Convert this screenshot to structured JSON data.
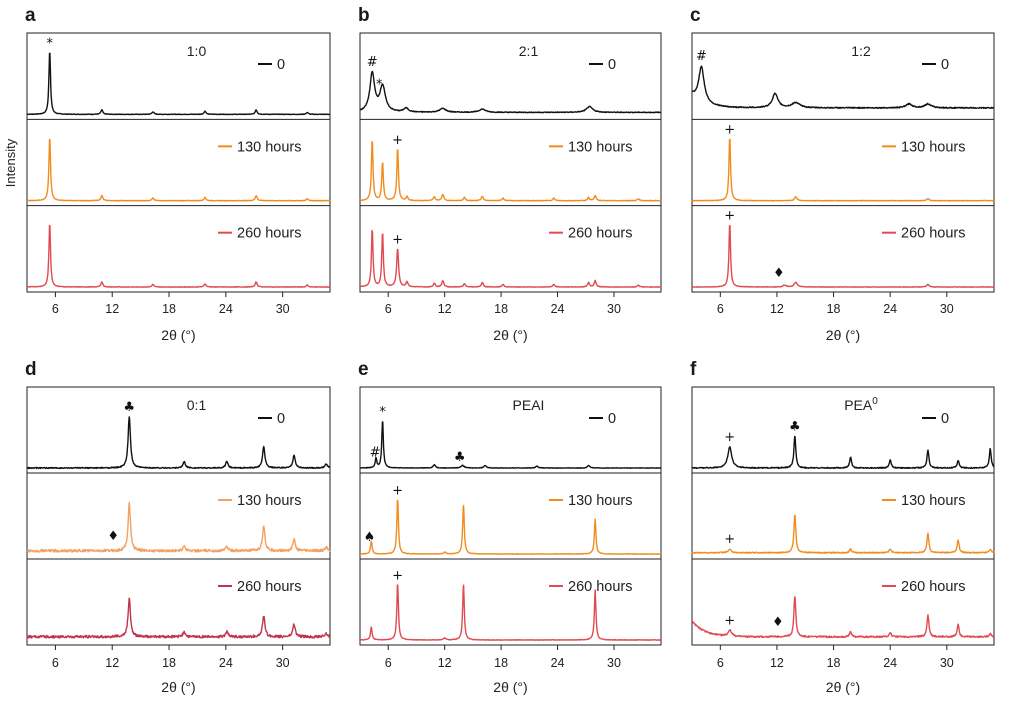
{
  "figure": {
    "ylabel": "Intensity",
    "xlabel": "2θ (°)",
    "xticks": [
      6,
      12,
      18,
      24,
      30
    ],
    "xlim": [
      3,
      35
    ],
    "colors": {
      "0": "#111111",
      "130": "#f28c1e",
      "260": "#e04a50"
    }
  },
  "chart_data": [
    {
      "panel": "a",
      "type": "line",
      "title": "1:0",
      "xlabel": "2θ (°)",
      "ylabel": "Intensity",
      "xlim": [
        3,
        35
      ],
      "xticks": [
        6,
        12,
        18,
        24,
        30
      ],
      "series": [
        {
          "name": "0",
          "legend": "0",
          "color": "#111111",
          "peaks": [
            [
              5.4,
              1.0,
              0.1
            ],
            [
              10.9,
              0.07,
              0.12
            ],
            [
              16.3,
              0.04,
              0.12
            ],
            [
              21.8,
              0.05,
              0.12
            ],
            [
              27.2,
              0.07,
              0.12
            ],
            [
              32.6,
              0.03,
              0.12
            ]
          ],
          "baseline": 0,
          "noise": 0.004,
          "markers": [
            {
              "symbol": "*",
              "x": 5.4
            }
          ]
        },
        {
          "name": "130 hours",
          "legend": "130 hours",
          "color": "#f28c1e",
          "peaks": [
            [
              5.4,
              1.0,
              0.1
            ],
            [
              10.9,
              0.08,
              0.12
            ],
            [
              16.3,
              0.04,
              0.12
            ],
            [
              21.8,
              0.05,
              0.12
            ],
            [
              27.2,
              0.08,
              0.12
            ],
            [
              32.6,
              0.03,
              0.12
            ]
          ],
          "baseline": 0,
          "noise": 0.004,
          "markers": []
        },
        {
          "name": "260 hours",
          "legend": "260 hours",
          "color": "#e04a50",
          "peaks": [
            [
              5.4,
              1.0,
              0.1
            ],
            [
              10.9,
              0.08,
              0.12
            ],
            [
              16.3,
              0.04,
              0.12
            ],
            [
              21.8,
              0.05,
              0.12
            ],
            [
              27.2,
              0.08,
              0.12
            ],
            [
              32.6,
              0.03,
              0.12
            ]
          ],
          "baseline": 0,
          "noise": 0.004,
          "markers": []
        }
      ]
    },
    {
      "panel": "b",
      "type": "line",
      "title": "2:1",
      "xlabel": "2θ (°)",
      "ylabel": "Intensity",
      "xlim": [
        3,
        35
      ],
      "xticks": [
        6,
        12,
        18,
        24,
        30
      ],
      "series": [
        {
          "name": "0",
          "legend": "0",
          "color": "#111111",
          "peaks": [
            [
              4.3,
              0.6,
              0.3
            ],
            [
              5.4,
              0.4,
              0.35
            ],
            [
              7.9,
              0.06,
              0.3
            ],
            [
              11.8,
              0.06,
              0.4
            ],
            [
              16.0,
              0.05,
              0.4
            ],
            [
              27.4,
              0.09,
              0.4
            ]
          ],
          "baseline": 0.03,
          "noise": 0.006,
          "markers": [
            {
              "symbol": "#",
              "x": 4.3
            },
            {
              "symbol": "*",
              "x": 5.05
            }
          ]
        },
        {
          "name": "130 hours",
          "legend": "130 hours",
          "color": "#f28c1e",
          "peaks": [
            [
              4.3,
              0.95,
              0.1
            ],
            [
              5.4,
              0.6,
              0.1
            ],
            [
              7.0,
              0.82,
              0.1
            ],
            [
              8.0,
              0.06,
              0.12
            ],
            [
              10.9,
              0.06,
              0.12
            ],
            [
              11.8,
              0.1,
              0.12
            ],
            [
              14.1,
              0.05,
              0.12
            ],
            [
              16.0,
              0.07,
              0.12
            ],
            [
              18.2,
              0.04,
              0.12
            ],
            [
              23.6,
              0.04,
              0.12
            ],
            [
              27.3,
              0.05,
              0.12
            ],
            [
              28.0,
              0.08,
              0.12
            ],
            [
              32.6,
              0.03,
              0.12
            ]
          ],
          "baseline": 0,
          "noise": 0.004,
          "markers": [
            {
              "symbol": "+",
              "x": 7.0
            }
          ]
        },
        {
          "name": "260 hours",
          "legend": "260 hours",
          "color": "#e04a50",
          "peaks": [
            [
              4.3,
              0.9,
              0.1
            ],
            [
              5.4,
              0.85,
              0.1
            ],
            [
              7.0,
              0.6,
              0.12
            ],
            [
              8.0,
              0.08,
              0.12
            ],
            [
              10.9,
              0.06,
              0.12
            ],
            [
              11.8,
              0.1,
              0.12
            ],
            [
              14.1,
              0.05,
              0.12
            ],
            [
              16.0,
              0.07,
              0.12
            ],
            [
              18.2,
              0.04,
              0.12
            ],
            [
              23.6,
              0.04,
              0.12
            ],
            [
              27.3,
              0.07,
              0.12
            ],
            [
              28.0,
              0.1,
              0.12
            ],
            [
              32.6,
              0.03,
              0.12
            ]
          ],
          "baseline": 0,
          "noise": 0.004,
          "markers": [
            {
              "symbol": "+",
              "x": 7.0
            }
          ]
        }
      ]
    },
    {
      "panel": "c",
      "type": "line",
      "title": "1:2",
      "xlabel": "2θ (°)",
      "ylabel": "Intensity",
      "xlim": [
        3,
        35
      ],
      "xticks": [
        6,
        12,
        18,
        24,
        30
      ],
      "series": [
        {
          "name": "0",
          "legend": "0",
          "color": "#111111",
          "peaks": [
            [
              4.0,
              0.55,
              0.35
            ],
            [
              11.8,
              0.22,
              0.35
            ],
            [
              14.0,
              0.08,
              0.5
            ],
            [
              26.0,
              0.06,
              0.4
            ],
            [
              28.0,
              0.06,
              0.4
            ]
          ],
          "baseline": 0.1,
          "decay": 0.2,
          "noise": 0.008,
          "markers": [
            {
              "symbol": "#",
              "x": 4.0
            }
          ]
        },
        {
          "name": "130 hours",
          "legend": "130 hours",
          "color": "#f28c1e",
          "peaks": [
            [
              7.0,
              1.0,
              0.1
            ],
            [
              14.0,
              0.06,
              0.15
            ],
            [
              28.0,
              0.03,
              0.15
            ]
          ],
          "baseline": 0,
          "noise": 0.004,
          "markers": [
            {
              "symbol": "+",
              "x": 7.0
            }
          ]
        },
        {
          "name": "260 hours",
          "legend": "260 hours",
          "color": "#e04a50",
          "peaks": [
            [
              7.0,
              1.0,
              0.1
            ],
            [
              12.8,
              0.03,
              0.2
            ],
            [
              14.0,
              0.07,
              0.2
            ],
            [
              28.0,
              0.04,
              0.15
            ]
          ],
          "baseline": 0,
          "noise": 0.004,
          "markers": [
            {
              "symbol": "+",
              "x": 7.0
            },
            {
              "symbol": "♦",
              "x": 12.2
            }
          ]
        }
      ]
    },
    {
      "panel": "d",
      "type": "line",
      "title": "0:1",
      "xlabel": "2θ (°)",
      "ylabel": "Intensity",
      "xlim": [
        3,
        35
      ],
      "xticks": [
        6,
        12,
        18,
        24,
        30
      ],
      "series": [
        {
          "name": "0",
          "legend": "0",
          "color": "#111111",
          "peaks": [
            [
              13.8,
              0.8,
              0.15
            ],
            [
              19.6,
              0.1,
              0.15
            ],
            [
              24.1,
              0.1,
              0.15
            ],
            [
              28.0,
              0.33,
              0.15
            ],
            [
              31.2,
              0.2,
              0.15
            ],
            [
              34.6,
              0.06,
              0.15
            ]
          ],
          "baseline": 0,
          "noise": 0.008,
          "markers": [
            {
              "symbol": "♣",
              "x": 13.8
            }
          ]
        },
        {
          "name": "130 hours",
          "legend": "130 hours",
          "color": "#f4a061",
          "peaks": [
            [
              13.8,
              0.75,
              0.15
            ],
            [
              19.6,
              0.08,
              0.15
            ],
            [
              24.1,
              0.07,
              0.15
            ],
            [
              28.0,
              0.4,
              0.15
            ],
            [
              31.2,
              0.18,
              0.15
            ],
            [
              34.6,
              0.06,
              0.15
            ]
          ],
          "baseline": 0.05,
          "noise": 0.02,
          "markers": [
            {
              "symbol": "♦",
              "x": 12.1
            }
          ]
        },
        {
          "name": "260 hours",
          "legend": "260 hours",
          "color": "#c0334c",
          "peaks": [
            [
              13.8,
              0.6,
              0.15
            ],
            [
              19.6,
              0.08,
              0.15
            ],
            [
              24.1,
              0.08,
              0.15
            ],
            [
              28.0,
              0.33,
              0.15
            ],
            [
              31.2,
              0.2,
              0.15
            ],
            [
              34.6,
              0.05,
              0.15
            ]
          ],
          "baseline": 0.05,
          "noise": 0.02,
          "markers": []
        }
      ]
    },
    {
      "panel": "e",
      "type": "line",
      "title": "PEAI",
      "xlabel": "2θ (°)",
      "ylabel": "Intensity",
      "xlim": [
        3,
        35
      ],
      "xticks": [
        6,
        12,
        18,
        24,
        30
      ],
      "series": [
        {
          "name": "0",
          "legend": "0",
          "color": "#111111",
          "peaks": [
            [
              4.7,
              0.15,
              0.1
            ],
            [
              5.4,
              0.75,
              0.1
            ],
            [
              10.9,
              0.05,
              0.15
            ],
            [
              13.9,
              0.04,
              0.2
            ],
            [
              16.3,
              0.04,
              0.15
            ],
            [
              21.8,
              0.03,
              0.15
            ],
            [
              27.3,
              0.04,
              0.15
            ]
          ],
          "baseline": 0,
          "noise": 0.004,
          "markers": [
            {
              "symbol": "#",
              "x": 4.6
            },
            {
              "symbol": "*",
              "x": 5.4
            },
            {
              "symbol": "♣",
              "x": 13.6
            }
          ]
        },
        {
          "name": "130 hours",
          "legend": "130 hours",
          "color": "#f28c1e",
          "peaks": [
            [
              4.2,
              0.2,
              0.1
            ],
            [
              7.0,
              0.88,
              0.1
            ],
            [
              12.0,
              0.03,
              0.15
            ],
            [
              14.0,
              0.78,
              0.1
            ],
            [
              28.0,
              0.55,
              0.1
            ]
          ],
          "baseline": 0,
          "noise": 0.004,
          "markers": [
            {
              "symbol": "+",
              "x": 7.0
            },
            {
              "symbol": "♠",
              "x": 4.0
            }
          ]
        },
        {
          "name": "260 hours",
          "legend": "260 hours",
          "color": "#e04a50",
          "peaks": [
            [
              4.2,
              0.2,
              0.1
            ],
            [
              7.0,
              0.9,
              0.1
            ],
            [
              12.0,
              0.03,
              0.15
            ],
            [
              14.0,
              0.88,
              0.1
            ],
            [
              28.0,
              0.78,
              0.1
            ]
          ],
          "baseline": 0,
          "noise": 0.004,
          "markers": [
            {
              "symbol": "+",
              "x": 7.0
            }
          ]
        }
      ]
    },
    {
      "panel": "f",
      "type": "line",
      "title": "PEA",
      "title_sup": "0",
      "xlabel": "2θ (°)",
      "ylabel": "Intensity",
      "xlim": [
        3,
        35
      ],
      "xticks": [
        6,
        12,
        18,
        24,
        30
      ],
      "series": [
        {
          "name": "0",
          "legend": "0",
          "color": "#111111",
          "peaks": [
            [
              7.0,
              0.33,
              0.25
            ],
            [
              13.9,
              0.5,
              0.12
            ],
            [
              19.8,
              0.17,
              0.12
            ],
            [
              24.0,
              0.13,
              0.12
            ],
            [
              28.0,
              0.28,
              0.12
            ],
            [
              31.2,
              0.12,
              0.12
            ],
            [
              34.6,
              0.3,
              0.12
            ]
          ],
          "baseline": 0,
          "noise": 0.008,
          "markers": [
            {
              "symbol": "+",
              "x": 7.0
            },
            {
              "symbol": "♣",
              "x": 13.9
            }
          ]
        },
        {
          "name": "130 hours",
          "legend": "130 hours",
          "color": "#f28c1e",
          "peaks": [
            [
              7.0,
              0.05,
              0.2
            ],
            [
              13.9,
              0.6,
              0.12
            ],
            [
              19.8,
              0.06,
              0.12
            ],
            [
              24.0,
              0.06,
              0.12
            ],
            [
              28.0,
              0.3,
              0.12
            ],
            [
              31.2,
              0.2,
              0.12
            ],
            [
              34.6,
              0.05,
              0.15
            ]
          ],
          "baseline": 0.02,
          "noise": 0.008,
          "markers": [
            {
              "symbol": "+",
              "x": 7.0
            }
          ]
        },
        {
          "name": "260 hours",
          "legend": "260 hours",
          "color": "#e04a50",
          "peaks": [
            [
              7.0,
              0.1,
              0.2
            ],
            [
              13.9,
              0.65,
              0.12
            ],
            [
              19.8,
              0.08,
              0.12
            ],
            [
              24.0,
              0.07,
              0.12
            ],
            [
              28.0,
              0.35,
              0.12
            ],
            [
              31.2,
              0.2,
              0.12
            ],
            [
              34.6,
              0.05,
              0.15
            ]
          ],
          "baseline": 0.05,
          "decay": 0.25,
          "noise": 0.012,
          "markers": [
            {
              "symbol": "+",
              "x": 7.0
            },
            {
              "symbol": "♦",
              "x": 12.1
            }
          ]
        }
      ]
    }
  ]
}
